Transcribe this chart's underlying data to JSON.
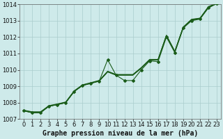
{
  "xlabel": "Graphe pression niveau de la mer (hPa)",
  "background_color": "#ceeaea",
  "line_color": "#1a5c1a",
  "grid_color": "#aacccc",
  "xlim": [
    -0.5,
    23.5
  ],
  "ylim": [
    1007,
    1014
  ],
  "yticks": [
    1007,
    1008,
    1009,
    1010,
    1011,
    1012,
    1013,
    1014
  ],
  "xticks": [
    0,
    1,
    2,
    3,
    4,
    5,
    6,
    7,
    8,
    9,
    10,
    11,
    12,
    13,
    14,
    15,
    16,
    17,
    18,
    19,
    20,
    21,
    22,
    23
  ],
  "smooth_lines": [
    [
      1007.5,
      1007.4,
      1007.4,
      1007.78,
      1007.88,
      1008.0,
      1008.68,
      1009.05,
      1009.18,
      1009.32,
      1009.88,
      1009.68,
      1009.68,
      1009.68,
      1010.1,
      1010.6,
      1010.6,
      1012.08,
      1011.1,
      1012.58,
      1013.05,
      1013.12,
      1013.82,
      1014.05
    ],
    [
      1007.5,
      1007.4,
      1007.4,
      1007.78,
      1007.88,
      1008.0,
      1008.68,
      1009.05,
      1009.18,
      1009.32,
      1009.88,
      1009.68,
      1009.68,
      1009.68,
      1010.1,
      1010.6,
      1010.6,
      1012.08,
      1011.1,
      1012.58,
      1013.05,
      1013.12,
      1013.82,
      1014.05
    ],
    [
      1007.52,
      1007.42,
      1007.42,
      1007.8,
      1007.9,
      1008.02,
      1008.7,
      1009.07,
      1009.2,
      1009.34,
      1009.9,
      1009.7,
      1009.7,
      1009.7,
      1010.12,
      1010.62,
      1010.62,
      1012.1,
      1011.12,
      1012.6,
      1013.07,
      1013.14,
      1013.84,
      1014.07
    ],
    [
      1007.54,
      1007.44,
      1007.44,
      1007.82,
      1007.92,
      1008.04,
      1008.72,
      1009.09,
      1009.22,
      1009.36,
      1009.92,
      1009.72,
      1009.72,
      1009.72,
      1010.14,
      1010.64,
      1010.64,
      1012.12,
      1011.14,
      1012.62,
      1013.09,
      1013.16,
      1013.86,
      1014.09
    ]
  ],
  "jagged_line": {
    "x": [
      0,
      1,
      2,
      3,
      4,
      5,
      6,
      7,
      8,
      9,
      10,
      11,
      12,
      13,
      14,
      15,
      16,
      17,
      18,
      19,
      20,
      21,
      22,
      23
    ],
    "y": [
      1007.5,
      1007.38,
      1007.38,
      1007.78,
      1007.88,
      1008.0,
      1008.68,
      1009.05,
      1009.18,
      1009.32,
      1010.62,
      1009.68,
      1009.35,
      1009.35,
      1010.0,
      1010.55,
      1010.5,
      1012.0,
      1011.05,
      1012.55,
      1013.0,
      1013.1,
      1013.78,
      1014.05
    ]
  },
  "xlabel_fontsize": 7,
  "tick_fontsize": 6
}
